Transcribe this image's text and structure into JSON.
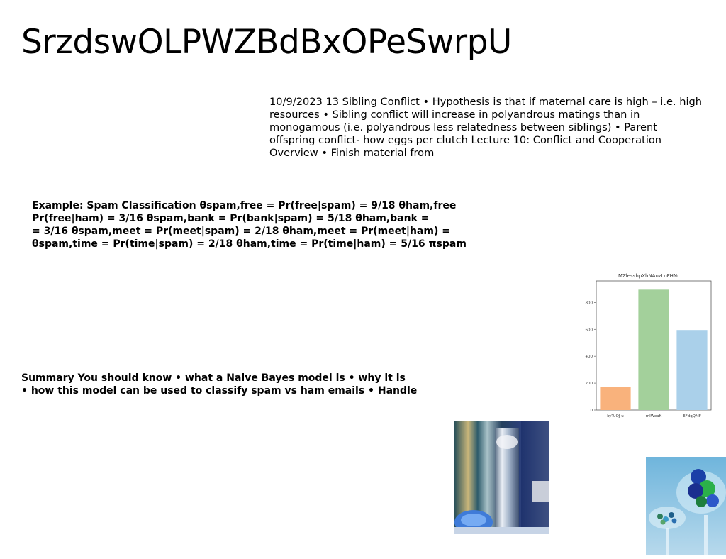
{
  "title": "SrzdswOLPWZBdBxOPeSwrpU",
  "paragraph": "10/9/2023 13 Sibling Conflict • Hypothesis is that if maternal care is high – i.e. high resources • Sibling conflict will increase in polyandrous matings than in monogamous (i.e. polyandrous less relatedness between siblings) • Parent offspring conflict- how eggs per clutch Lecture 10: Conflict and Cooperation Overview • Finish material from",
  "example": {
    "lines": [
      "Example: Spam Classification θspam,free = Pr(free|spam) = 9/18 θham,free",
      "Pr(free|ham) = 3/16 θspam,bank = Pr(bank|spam) = 5/18 θham,bank =",
      "= 3/16 θspam,meet = Pr(meet|spam) = 2/18 θham,meet = Pr(meet|ham) =",
      "θspam,time = Pr(time|spam) = 2/18 θham,time = Pr(time|ham) = 5/16 πspam"
    ]
  },
  "summary": {
    "lines": [
      "Summary You should know • what a Naive Bayes model is • why it is",
      "• how this model can be used to classify spam vs ham emails • Handle"
    ]
  },
  "chart_data": {
    "type": "bar",
    "title": "MZlesshpXhNAuzLoFHNr",
    "categories": [
      "kyTuQJ u",
      "mIWeaK",
      "EFdqQMF"
    ],
    "values": [
      170,
      895,
      595
    ],
    "colors": [
      "#f9b27c",
      "#a3d09b",
      "#aad0ea"
    ],
    "ylim": [
      0,
      960
    ],
    "yticks": [
      0,
      200,
      400,
      600,
      800
    ],
    "xlabel": "",
    "ylabel": "",
    "grid": false
  },
  "images": [
    {
      "name": "glass-cylinder-photo"
    },
    {
      "name": "marbles-bowl-photo"
    }
  ]
}
